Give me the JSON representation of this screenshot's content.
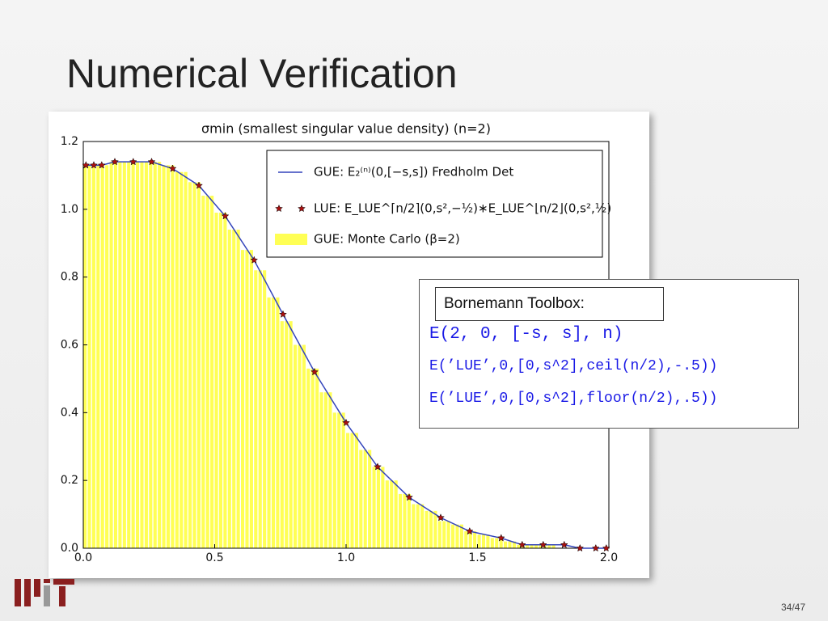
{
  "slide_title": "Numerical Verification",
  "page_number": "34/47",
  "toolbox": {
    "label": "Bornemann Toolbox:",
    "lines": [
      "E(2, 0, [-s, s], n)",
      "E(’LUE’,0,[0,s^2],ceil(n/2),-.5))",
      "E(’LUE’,0,[0,s^2],floor(n/2),.5))"
    ]
  },
  "chart_data": {
    "type": "line",
    "title": "σmin (smallest singular value density)  (n=2)",
    "xlim": [
      0,
      2
    ],
    "ylim": [
      0,
      1.2
    ],
    "xticks": [
      {
        "value": 0,
        "label": "0.0"
      },
      0.5,
      {
        "value": 1,
        "label": "1.0"
      },
      1.5,
      {
        "value": 2,
        "label": "2.0"
      }
    ],
    "yticks": [
      {
        "value": 0,
        "label": "0.0"
      },
      0.2,
      0.4,
      0.6,
      0.8,
      {
        "value": 1,
        "label": "1.0"
      },
      1.2
    ],
    "legend": "upper right",
    "x": [
      0.01,
      0.04,
      0.07,
      0.12,
      0.19,
      0.26,
      0.34,
      0.44,
      0.54,
      0.65,
      0.76,
      0.88,
      1.0,
      1.12,
      1.24,
      1.36,
      1.47,
      1.59,
      1.67,
      1.75,
      1.83,
      1.89,
      1.95,
      1.99
    ],
    "series": [
      {
        "name": "GUE: E₂⁽ⁿ⁾(0,[−s,s]) Fredholm Det",
        "color": "#3344bb",
        "marker": "line",
        "values": [
          1.13,
          1.13,
          1.13,
          1.14,
          1.14,
          1.14,
          1.12,
          1.07,
          0.98,
          0.85,
          0.69,
          0.52,
          0.37,
          0.24,
          0.15,
          0.09,
          0.05,
          0.03,
          0.01,
          0.01,
          0.01,
          0,
          0,
          0
        ]
      },
      {
        "name": "LUE: E_LUE^⌈n/2⌉(0,s²,−½)∗E_LUE^⌊n/2⌋(0,s²,½)",
        "color": "#aa1111",
        "marker": "star",
        "values": [
          1.13,
          1.13,
          1.13,
          1.14,
          1.14,
          1.14,
          1.12,
          1.07,
          0.98,
          0.85,
          0.69,
          0.52,
          0.37,
          0.24,
          0.15,
          0.09,
          0.05,
          0.03,
          0.01,
          0.01,
          0.01,
          0,
          0,
          0
        ]
      }
    ],
    "histogram": {
      "name": "GUE: Monte Carlo (β=2)",
      "color": "#ffff55",
      "bins": [
        0,
        0.05,
        0.1,
        0.15,
        0.2,
        0.25,
        0.3,
        0.35,
        0.4,
        0.45,
        0.5,
        0.55,
        0.6,
        0.65,
        0.7,
        0.75,
        0.8,
        0.85,
        0.9,
        0.95,
        1.0,
        1.05,
        1.1,
        1.15,
        1.2,
        1.25,
        1.3,
        1.35,
        1.4,
        1.45,
        1.5,
        1.55,
        1.6,
        1.65,
        1.7,
        1.75,
        1.8,
        1.85,
        1.9,
        1.95,
        2.0
      ],
      "values": [
        1.13,
        1.13,
        1.14,
        1.14,
        1.14,
        1.14,
        1.13,
        1.11,
        1.08,
        1.04,
        0.99,
        0.94,
        0.88,
        0.82,
        0.74,
        0.67,
        0.6,
        0.53,
        0.46,
        0.4,
        0.34,
        0.29,
        0.24,
        0.2,
        0.16,
        0.13,
        0.11,
        0.08,
        0.07,
        0.05,
        0.04,
        0.03,
        0.02,
        0.01,
        0.01,
        0.01,
        0,
        0,
        0,
        0
      ]
    }
  }
}
